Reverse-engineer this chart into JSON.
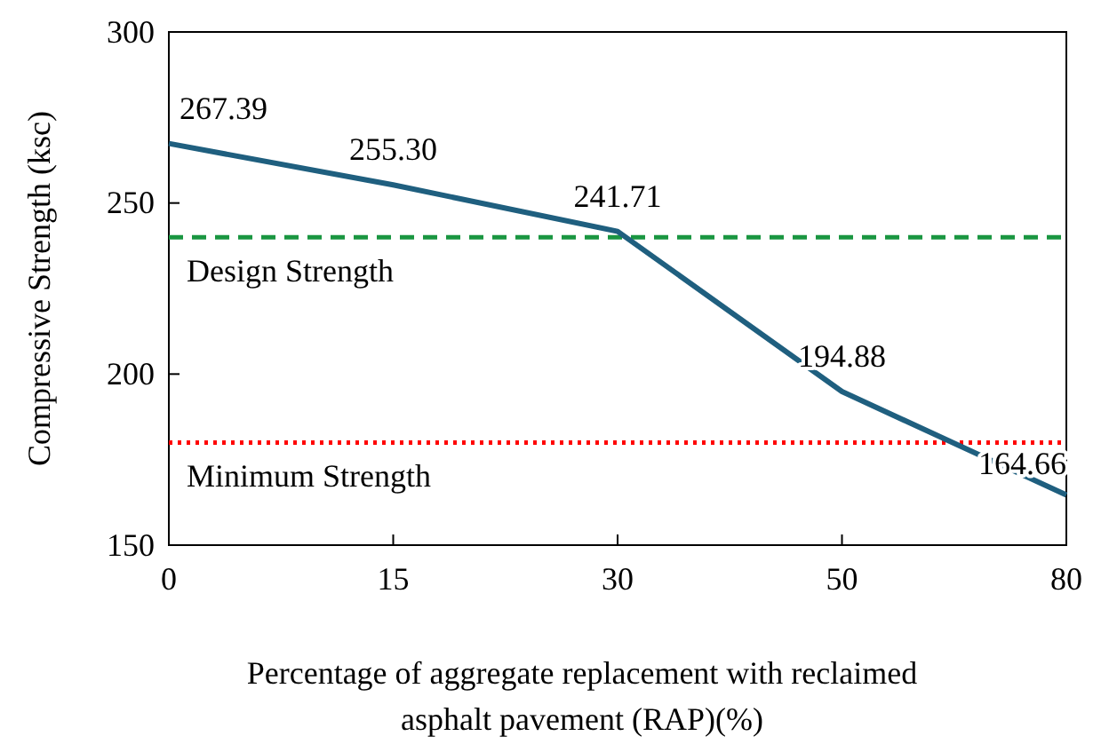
{
  "chart_data": {
    "type": "line",
    "xlabel": "Percentage of aggregate replacement with reclaimed asphalt pavement (RAP)(%)",
    "ylabel": "Compressive Strength (ksc)",
    "categories": [
      "0",
      "15",
      "30",
      "50",
      "80"
    ],
    "series": [
      {
        "color": "#1f5f7f",
        "values": [
          267.39,
          255.3,
          241.71,
          194.88,
          164.66
        ],
        "value_labels": [
          "267.39",
          "255.30",
          "241.71",
          "194.88",
          "164.66"
        ]
      }
    ],
    "ylim": [
      150,
      300
    ],
    "yticks": [
      150,
      200,
      250,
      300
    ],
    "grid": false,
    "marker": "none",
    "line_style": "solid",
    "ref_lines": [
      {
        "axis": "y",
        "value": 240,
        "label": "Design Strength",
        "color": "#1a9641",
        "line_style": "dashed"
      },
      {
        "axis": "y",
        "value": 180,
        "label": "Minimum Strength",
        "color": "#ff0000",
        "line_style": "dotted"
      }
    ]
  }
}
